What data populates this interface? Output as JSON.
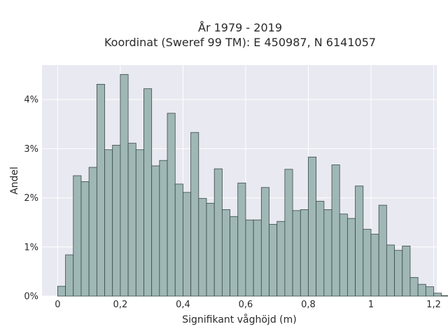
{
  "chart_data": {
    "type": "bar",
    "title_line1": "År 1979 - 2019",
    "title_line2": "Koordinat (Sweref 99 TM): E 450987, N 6141057",
    "xlabel": "Signifikant våghöjd (m)",
    "ylabel": "Andel",
    "xlim": [
      -0.05,
      1.21
    ],
    "ylim": [
      0,
      4.7
    ],
    "grid": true,
    "bin_width": 0.025,
    "bin_start": 0.0,
    "values": [
      0.2,
      0.84,
      2.45,
      2.33,
      2.62,
      4.31,
      2.98,
      3.07,
      4.51,
      3.11,
      2.98,
      4.22,
      2.65,
      2.76,
      3.72,
      2.28,
      2.11,
      3.33,
      1.99,
      1.89,
      2.59,
      1.76,
      1.62,
      2.3,
      1.55,
      1.55,
      2.21,
      1.46,
      1.52,
      2.58,
      1.74,
      1.76,
      2.83,
      1.93,
      1.76,
      2.67,
      1.67,
      1.58,
      2.24,
      1.36,
      1.26,
      1.85,
      1.04,
      0.93,
      1.02,
      0.38,
      0.24,
      0.19,
      0.06,
      0.01
    ],
    "x_ticks": [
      {
        "value": 0,
        "label": "0"
      },
      {
        "value": 0.2,
        "label": "0,2"
      },
      {
        "value": 0.4,
        "label": "0,4"
      },
      {
        "value": 0.6,
        "label": "0,6"
      },
      {
        "value": 0.8,
        "label": "0,8"
      },
      {
        "value": 1,
        "label": "1"
      },
      {
        "value": 1.2,
        "label": "1,2"
      }
    ],
    "y_ticks": [
      {
        "value": 0,
        "label": "0%"
      },
      {
        "value": 1,
        "label": "1%"
      },
      {
        "value": 2,
        "label": "2%"
      },
      {
        "value": 3,
        "label": "3%"
      },
      {
        "value": 4,
        "label": "4%"
      }
    ],
    "colors": {
      "bar_fill": "#9fb7b5",
      "bar_edge": "#3a4a48",
      "plot_background": "#e9e9f1"
    }
  }
}
